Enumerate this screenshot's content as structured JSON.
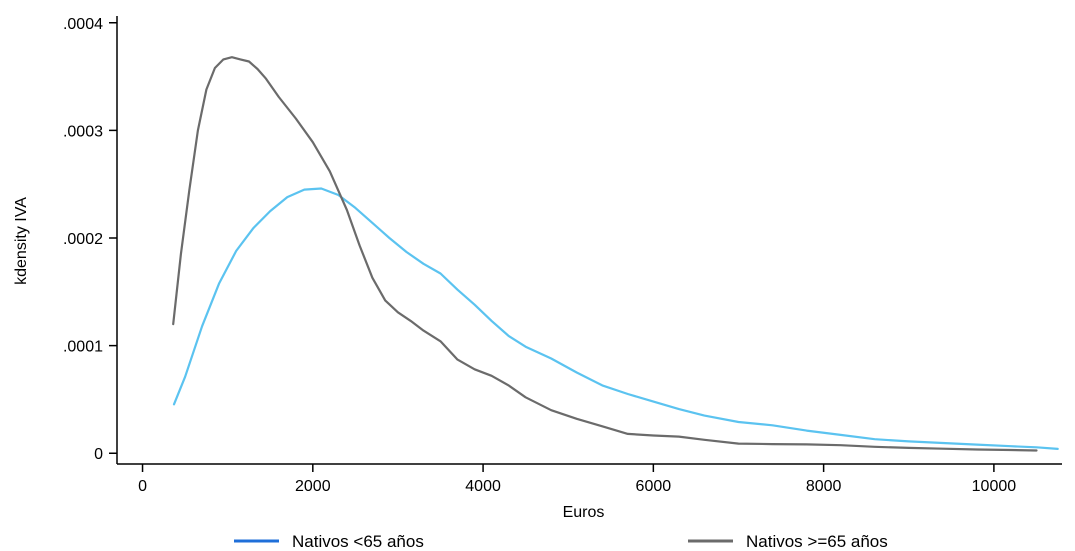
{
  "chart_data": {
    "type": "line",
    "title": "",
    "xlabel": "Euros",
    "ylabel": "kdensity IVA",
    "xlim": [
      -300,
      10800
    ],
    "ylim": [
      -1e-05,
      0.00041
    ],
    "xticks": [
      {
        "value": 0,
        "label": "0"
      },
      {
        "value": 2000,
        "label": "2000"
      },
      {
        "value": 4000,
        "label": "4000"
      },
      {
        "value": 6000,
        "label": "6000"
      },
      {
        "value": 8000,
        "label": "8000"
      },
      {
        "value": 10000,
        "label": "10000"
      }
    ],
    "yticks": [
      {
        "value": 0,
        "label": "0"
      },
      {
        "value": 0.0001,
        "label": ".0001"
      },
      {
        "value": 0.0002,
        "label": ".0002"
      },
      {
        "value": 0.0003,
        "label": ".0003"
      },
      {
        "value": 0.0004,
        "label": ".0004"
      }
    ],
    "grid": false,
    "legend_position": "bottom",
    "series": [
      {
        "name": "Nativos <65 años",
        "color": "#5BC3F0",
        "legend_color": "#1F6FD9",
        "x": [
          370,
          500,
          700,
          900,
          1100,
          1300,
          1500,
          1700,
          1900,
          2100,
          2300,
          2500,
          2700,
          2900,
          3100,
          3300,
          3500,
          3700,
          3900,
          4100,
          4300,
          4500,
          4800,
          5100,
          5400,
          5700,
          6000,
          6300,
          6600,
          7000,
          7400,
          7800,
          8200,
          8600,
          9000,
          9400,
          9800,
          10200,
          10500,
          10750
        ],
        "y": [
          4.55e-05,
          7.1e-05,
          0.000118,
          0.000158,
          0.000188,
          0.000209,
          0.000225,
          0.000238,
          0.000245,
          0.000246,
          0.00024,
          0.000228,
          0.000214,
          0.0002,
          0.000187,
          0.000176,
          0.000167,
          0.000152,
          0.000138,
          0.000123,
          0.000109,
          9.9e-05,
          8.8e-05,
          7.5e-05,
          6.3e-05,
          5.5e-05,
          4.8e-05,
          4.1e-05,
          3.5e-05,
          2.9e-05,
          2.6e-05,
          2.1e-05,
          1.7e-05,
          1.3e-05,
          1.1e-05,
          9.5e-06,
          8e-06,
          6.5e-06,
          5.5e-06,
          4e-06
        ]
      },
      {
        "name": "Nativos >=65 años",
        "color": "#6B6B6B",
        "legend_color": "#6B6B6B",
        "x": [
          360,
          450,
          550,
          650,
          750,
          850,
          950,
          1050,
          1150,
          1250,
          1350,
          1450,
          1600,
          1800,
          2000,
          2200,
          2400,
          2550,
          2700,
          2850,
          3000,
          3150,
          3300,
          3500,
          3700,
          3900,
          4100,
          4300,
          4500,
          4800,
          5100,
          5400,
          5700,
          6000,
          6300,
          6600,
          7000,
          7400,
          7800,
          8200,
          8600,
          9000,
          9400,
          9800,
          10200,
          10500
        ],
        "y": [
          0.00012,
          0.000185,
          0.000245,
          0.0003,
          0.000338,
          0.000358,
          0.000366,
          0.000368,
          0.000366,
          0.000364,
          0.000357,
          0.000348,
          0.000331,
          0.000311,
          0.000289,
          0.000262,
          0.000226,
          0.000193,
          0.000163,
          0.000142,
          0.000131,
          0.000123,
          0.000114,
          0.000104,
          8.7e-05,
          7.8e-05,
          7.2e-05,
          6.3e-05,
          5.2e-05,
          4e-05,
          3.2e-05,
          2.5e-05,
          1.8e-05,
          1.65e-05,
          1.55e-05,
          1.25e-05,
          9e-06,
          8.5e-06,
          8.2e-06,
          7.5e-06,
          6e-06,
          5e-06,
          4.2e-06,
          3.5e-06,
          3e-06,
          2.5e-06
        ]
      }
    ]
  }
}
